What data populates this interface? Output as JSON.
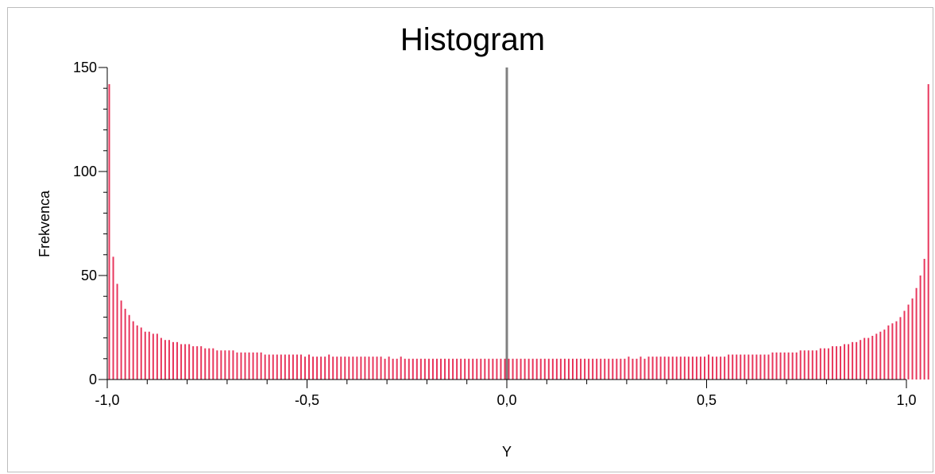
{
  "chart_data": {
    "type": "bar",
    "title": "Histogram",
    "xlabel": "Y",
    "ylabel": "Frekvenca",
    "xlim": [
      -1.0,
      1.0
    ],
    "ylim": [
      0,
      150
    ],
    "x_ticks": [
      -1.0,
      -0.5,
      0.0,
      0.5,
      1.0
    ],
    "x_tick_labels": [
      "-1,0",
      "-0,5",
      "0,0",
      "0,5",
      "1,0"
    ],
    "y_ticks": [
      0,
      50,
      100,
      150
    ],
    "y_tick_labels": [
      "0",
      "50",
      "100",
      "150"
    ],
    "bin_count": 200,
    "bar_color": "#e8375d",
    "zero_line_color": "#808080",
    "grid": false,
    "legend": "none",
    "series": [
      {
        "values": [
          142,
          59,
          46,
          38,
          34,
          31,
          28,
          26,
          25,
          23,
          23,
          22,
          22,
          20,
          19,
          19,
          18,
          18,
          17,
          17,
          17,
          16,
          16,
          16,
          15,
          15,
          15,
          14,
          14,
          14,
          14,
          14,
          13,
          13,
          13,
          13,
          13,
          13,
          13,
          12,
          12,
          12,
          12,
          12,
          12,
          12,
          12,
          12,
          12,
          11,
          12,
          11,
          11,
          11,
          11,
          12,
          11,
          11,
          11,
          11,
          11,
          11,
          11,
          11,
          11,
          11,
          11,
          11,
          11,
          10,
          11,
          10,
          10,
          11,
          10,
          10,
          10,
          10,
          10,
          10,
          10,
          10,
          10,
          10,
          10,
          10,
          10,
          10,
          10,
          10,
          10,
          10,
          10,
          10,
          10,
          10,
          10,
          10,
          10,
          10,
          10,
          10,
          10,
          10,
          10,
          10,
          10,
          10,
          10,
          10,
          10,
          10,
          10,
          10,
          10,
          10,
          10,
          10,
          10,
          10,
          10,
          10,
          10,
          10,
          10,
          10,
          10,
          10,
          10,
          10,
          11,
          10,
          10,
          11,
          10,
          11,
          11,
          11,
          11,
          11,
          11,
          11,
          11,
          11,
          11,
          11,
          11,
          11,
          11,
          11,
          12,
          11,
          11,
          11,
          11,
          12,
          12,
          12,
          12,
          12,
          12,
          12,
          12,
          12,
          12,
          12,
          13,
          13,
          13,
          13,
          13,
          13,
          13,
          14,
          14,
          14,
          14,
          14,
          15,
          15,
          15,
          16,
          16,
          16,
          17,
          17,
          18,
          18,
          19,
          20,
          20,
          21,
          22,
          23,
          24,
          26,
          27,
          28,
          30,
          33,
          36,
          39,
          44,
          50,
          58,
          142
        ]
      }
    ]
  }
}
